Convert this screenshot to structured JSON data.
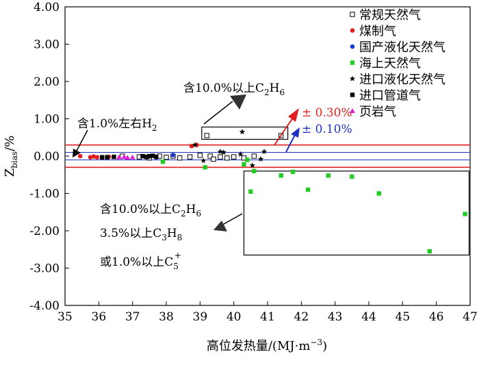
{
  "chart_data": {
    "type": "scatter",
    "xlim": [
      35,
      47
    ],
    "ylim": [
      -4,
      4
    ],
    "x_ticks": [
      35,
      36,
      37,
      38,
      39,
      40,
      41,
      42,
      43,
      44,
      45,
      46,
      47
    ],
    "y_ticks": [
      4,
      3,
      2,
      1,
      0,
      -1,
      -2,
      -3,
      -4
    ],
    "x_tick_labels": [
      "35",
      "36",
      "37",
      "38",
      "39",
      "40",
      "41",
      "42",
      "43",
      "44",
      "45",
      "46",
      "47"
    ],
    "y_tick_labels": [
      "4.00",
      "3.00",
      "2.00",
      "1.00",
      "0.00",
      "-1.00",
      "-2.00",
      "-3.00",
      "-4.00"
    ],
    "xlabel": "高位发热量/(MJ·m",
    "xlabel_sup": "−3",
    "xlabel_end": ")",
    "ylabel": "Z",
    "ylabel_sub": "bias",
    "ylabel_end": "/%",
    "grid": false,
    "legend_position": "top-right",
    "reference_lines": [
      {
        "label": "± 0.30%",
        "values": [
          0.3,
          -0.3
        ],
        "color": "#e02020"
      },
      {
        "label": "± 0.10%",
        "values": [
          0.1,
          -0.1
        ],
        "color": "#2030c8"
      }
    ],
    "series": [
      {
        "name": "常规天然气",
        "marker": "square-open",
        "color": "#000000",
        "points": [
          [
            36.7,
            0.0
          ],
          [
            37.2,
            -0.02
          ],
          [
            37.5,
            -0.05
          ],
          [
            37.8,
            0.0
          ],
          [
            38.0,
            -0.03
          ],
          [
            38.2,
            0.0
          ],
          [
            38.4,
            -0.05
          ],
          [
            38.7,
            -0.02
          ],
          [
            39.0,
            0.02
          ],
          [
            39.3,
            0.0
          ],
          [
            39.4,
            -0.08
          ],
          [
            39.6,
            -0.02
          ],
          [
            39.8,
            -0.05
          ],
          [
            40.0,
            -0.02
          ],
          [
            40.3,
            -0.05
          ],
          [
            40.6,
            0.0
          ],
          [
            39.2,
            0.55
          ],
          [
            41.4,
            0.55
          ]
        ]
      },
      {
        "name": "煤制气",
        "marker": "circle",
        "color": "#e02020",
        "points": [
          [
            35.45,
            0.0
          ],
          [
            35.75,
            -0.03
          ],
          [
            35.85,
            -0.01
          ],
          [
            35.95,
            -0.03
          ],
          [
            36.1,
            -0.04
          ],
          [
            36.3,
            -0.02
          ],
          [
            38.75,
            0.27
          ],
          [
            38.9,
            0.3
          ]
        ]
      },
      {
        "name": "国产液化天然气",
        "marker": "circle",
        "color": "#1a3ad0",
        "points": [
          [
            37.7,
            -0.03
          ],
          [
            38.2,
            0.03
          ]
        ]
      },
      {
        "name": "海上天然气",
        "marker": "square",
        "color": "#22cc22",
        "points": [
          [
            37.9,
            -0.15
          ],
          [
            39.15,
            -0.3
          ],
          [
            40.4,
            -0.1
          ],
          [
            40.3,
            -0.22
          ],
          [
            40.5,
            -0.95
          ],
          [
            40.6,
            -0.4
          ],
          [
            41.4,
            -0.52
          ],
          [
            41.75,
            -0.42
          ],
          [
            42.2,
            -0.9
          ],
          [
            42.8,
            -0.52
          ],
          [
            43.5,
            -0.55
          ],
          [
            44.3,
            -1.0
          ],
          [
            45.8,
            -2.55
          ],
          [
            46.85,
            -1.55
          ]
        ]
      },
      {
        "name": "进口液化天然气",
        "marker": "star",
        "color": "#000000",
        "points": [
          [
            37.45,
            -0.03
          ],
          [
            38.85,
            0.3
          ],
          [
            39.1,
            -0.12
          ],
          [
            39.6,
            0.12
          ],
          [
            39.7,
            0.1
          ],
          [
            40.2,
            0.05
          ],
          [
            40.25,
            0.65
          ],
          [
            40.55,
            -0.25
          ],
          [
            40.8,
            -0.08
          ],
          [
            40.9,
            0.12
          ]
        ]
      },
      {
        "name": "进口管道气",
        "marker": "square",
        "color": "#000000",
        "points": [
          [
            36.1,
            -0.03
          ],
          [
            36.25,
            -0.03
          ],
          [
            36.45,
            -0.02
          ],
          [
            37.3,
            0.0
          ],
          [
            37.4,
            -0.02
          ],
          [
            37.5,
            0.0
          ],
          [
            37.6,
            0.01
          ],
          [
            37.7,
            -0.02
          ]
        ]
      },
      {
        "name": "页岩气",
        "marker": "triangle",
        "color": "#e020d0",
        "points": [
          [
            36.6,
            -0.03
          ],
          [
            36.75,
            -0.02
          ],
          [
            36.85,
            -0.04
          ],
          [
            37.0,
            -0.03
          ]
        ]
      }
    ],
    "annotations": [
      {
        "text": "含1.0%左右H",
        "sub": "2"
      },
      {
        "text": "含10.0%以上C",
        "sub1": "2",
        "mid": "H",
        "sub2": "6"
      },
      {
        "line1": "含10.0%以上C",
        "line1_sub1": "2",
        "line1_mid": "H",
        "line1_sub2": "6",
        "line2": "3.5%以上C",
        "line2_sub1": "3",
        "line2_mid": "H",
        "line2_sub2": "8",
        "line3": "或1.0%以上C",
        "line3_sub": "5",
        "line3_sup": "+"
      }
    ]
  }
}
